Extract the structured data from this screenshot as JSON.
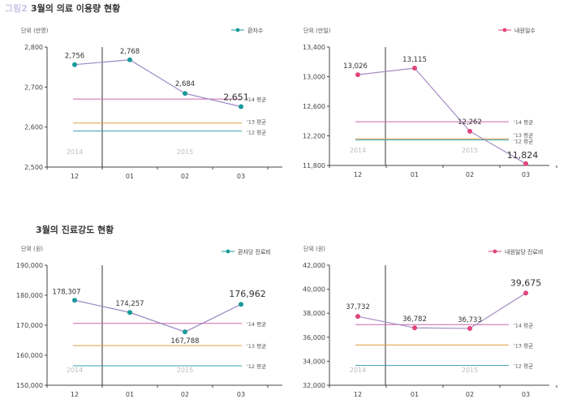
{
  "section1": {
    "prefix": "그림2",
    "title": "3월의 의료 이용량 현황"
  },
  "section2": {
    "title": "3월의 진료강도 현황"
  },
  "chart_data": [
    {
      "type": "line",
      "unit": "단위 (만명)",
      "legend": "환자수",
      "color": "#1a9a9a",
      "categories": [
        "12",
        "01",
        "02",
        "03"
      ],
      "values": [
        2756,
        2768,
        2684,
        2651
      ],
      "labels": [
        "2,756",
        "2,768",
        "2,684",
        "2,651"
      ],
      "ylim": [
        2500,
        2800
      ],
      "yticks": [
        2500,
        2600,
        2700,
        2800
      ],
      "ytick_labels": [
        "2,500",
        "2,600",
        "2,700",
        "2,800"
      ],
      "years": [
        "2014",
        "2015"
      ],
      "averages": [
        {
          "label": "'14 평균",
          "value": 2670,
          "color": "#cc66aa"
        },
        {
          "label": "'13 평균",
          "value": 2610,
          "color": "#e0a040"
        },
        {
          "label": "'12 평균",
          "value": 2590,
          "color": "#3aa0b0"
        }
      ]
    },
    {
      "type": "line",
      "unit": "단위 (만일)",
      "legend": "내원일수",
      "color": "#e0457b",
      "categories": [
        "12",
        "01",
        "02",
        "03"
      ],
      "values": [
        13026,
        13115,
        12262,
        11824
      ],
      "labels": [
        "13,026",
        "13,115",
        "12,262",
        "11,824"
      ],
      "ylim": [
        11800,
        13400
      ],
      "yticks": [
        11800,
        12200,
        12600,
        13000,
        13400
      ],
      "ytick_labels": [
        "11,800",
        "12,200",
        "12,600",
        "13,000",
        "13,400"
      ],
      "years": [
        "2014",
        "2015"
      ],
      "averages": [
        {
          "label": "'14 평균",
          "value": 12390,
          "color": "#cc66aa"
        },
        {
          "label": "'13 평균",
          "value": 12160,
          "color": "#e0a040"
        },
        {
          "label": "'12 평균",
          "value": 12145,
          "color": "#3aa0b0"
        }
      ]
    },
    {
      "type": "line",
      "unit": "단위 (원)",
      "legend": "환자당 진료비",
      "color": "#1a9a9a",
      "categories": [
        "12",
        "01",
        "02",
        "03"
      ],
      "values": [
        178307,
        174257,
        167788,
        176962
      ],
      "labels": [
        "178,307",
        "174,257",
        "167,788",
        "176,962"
      ],
      "ylim": [
        150000,
        190000
      ],
      "yticks": [
        150000,
        160000,
        170000,
        180000,
        190000
      ],
      "ytick_labels": [
        "150,000",
        "160,000",
        "170,000",
        "180,000",
        "190,000"
      ],
      "years": [
        "2014",
        "2015"
      ],
      "averages": [
        {
          "label": "'14 평균",
          "value": 170600,
          "color": "#cc66aa"
        },
        {
          "label": "'13 평균",
          "value": 163200,
          "color": "#e0a040"
        },
        {
          "label": "'12 평균",
          "value": 156500,
          "color": "#3aa0b0"
        }
      ]
    },
    {
      "type": "line",
      "unit": "단위 (원)",
      "legend": "내원일당 진료비",
      "color": "#e0457b",
      "categories": [
        "12",
        "01",
        "02",
        "03"
      ],
      "values": [
        37732,
        36782,
        36733,
        39675
      ],
      "labels": [
        "37,732",
        "36,782",
        "36,733",
        "39,675"
      ],
      "ylim": [
        32000,
        42000
      ],
      "yticks": [
        32000,
        34000,
        36000,
        38000,
        40000,
        42000
      ],
      "ytick_labels": [
        "32,000",
        "34,000",
        "36,000",
        "38,000",
        "40,000",
        "42,000"
      ],
      "years": [
        "2014",
        "2015"
      ],
      "averages": [
        {
          "label": "'14 평균",
          "value": 37050,
          "color": "#cc66aa"
        },
        {
          "label": "'13 평균",
          "value": 35350,
          "color": "#e0a040"
        },
        {
          "label": "'12 평균",
          "value": 33650,
          "color": "#3aa0b0"
        }
      ]
    }
  ]
}
